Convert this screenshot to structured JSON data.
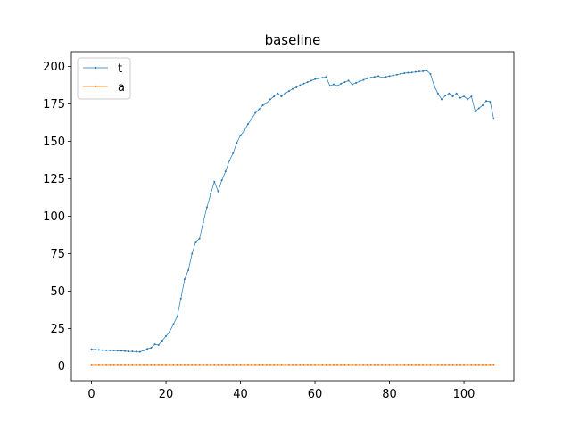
{
  "chart_data": {
    "type": "line",
    "title": "baseline",
    "xlabel": "",
    "ylabel": "",
    "xlim": [
      -5.4,
      113.4
    ],
    "ylim": [
      -9.8,
      209.8
    ],
    "xticks": [
      0,
      20,
      40,
      60,
      80,
      100
    ],
    "yticks": [
      0,
      25,
      50,
      75,
      100,
      125,
      150,
      175,
      200
    ],
    "grid": false,
    "legend_position": "top-left",
    "x": [
      0,
      1,
      2,
      3,
      4,
      5,
      6,
      7,
      8,
      9,
      10,
      11,
      12,
      13,
      14,
      15,
      16,
      17,
      18,
      19,
      20,
      21,
      22,
      23,
      24,
      25,
      26,
      27,
      28,
      29,
      30,
      31,
      32,
      33,
      34,
      35,
      36,
      37,
      38,
      39,
      40,
      41,
      42,
      43,
      44,
      45,
      46,
      47,
      48,
      49,
      50,
      51,
      52,
      53,
      54,
      55,
      56,
      57,
      58,
      59,
      60,
      61,
      62,
      63,
      64,
      65,
      66,
      67,
      68,
      69,
      70,
      71,
      72,
      73,
      74,
      75,
      76,
      77,
      78,
      79,
      80,
      81,
      82,
      83,
      84,
      85,
      86,
      87,
      88,
      89,
      90,
      91,
      92,
      93,
      94,
      95,
      96,
      97,
      98,
      99,
      100,
      101,
      102,
      103,
      104,
      105,
      106,
      107,
      108
    ],
    "series": [
      {
        "name": "t",
        "color": "#1f77b4",
        "values": [
          11.2,
          11.0,
          10.8,
          10.6,
          10.5,
          10.5,
          10.4,
          10.3,
          10.2,
          10.0,
          9.8,
          9.8,
          9.6,
          9.5,
          10.5,
          11.5,
          12.2,
          14.5,
          14.0,
          17.0,
          20.0,
          23.0,
          28.0,
          33.0,
          45.0,
          58.0,
          64.0,
          75.0,
          83.0,
          85.0,
          96.0,
          106.0,
          115.0,
          123.0,
          116.5,
          124.0,
          130.0,
          137.0,
          142.0,
          149.0,
          154.0,
          157.0,
          161.5,
          165.0,
          169.0,
          171.5,
          174.0,
          175.5,
          178.0,
          180.0,
          182.0,
          180.0,
          182.0,
          183.5,
          185.0,
          186.0,
          187.5,
          188.5,
          189.5,
          190.5,
          191.5,
          192.0,
          192.5,
          193.0,
          187.0,
          188.0,
          187.0,
          188.5,
          189.5,
          190.5,
          188.0,
          189.0,
          190.0,
          191.0,
          192.0,
          192.5,
          193.0,
          193.5,
          192.5,
          193.0,
          193.5,
          194.0,
          194.5,
          195.0,
          195.5,
          195.8,
          196.0,
          196.3,
          196.6,
          196.8,
          197.2,
          195.0,
          187.0,
          182.0,
          178.0,
          180.5,
          182.0,
          180.0,
          182.0,
          179.0,
          180.0,
          178.0,
          180.0,
          170.0,
          172.0,
          174.0,
          177.0,
          176.5,
          165.0
        ]
      },
      {
        "name": "a",
        "color": "#ff7f0e",
        "values": [
          1,
          1,
          1,
          1,
          1,
          1,
          1,
          1,
          1,
          1,
          1,
          1,
          1,
          1,
          1,
          1,
          1,
          1,
          1,
          1,
          1,
          1,
          1,
          1,
          1,
          1,
          1,
          1,
          1,
          1,
          1,
          1,
          1,
          1,
          1,
          1,
          1,
          1,
          1,
          1,
          1,
          1,
          1,
          1,
          1,
          1,
          1,
          1,
          1,
          1,
          1,
          1,
          1,
          1,
          1,
          1,
          1,
          1,
          1,
          1,
          1,
          1,
          1,
          1,
          1,
          1,
          1,
          1,
          1,
          1,
          1,
          1,
          1,
          1,
          1,
          1,
          1,
          1,
          1,
          1,
          1,
          1,
          1,
          1,
          1,
          1,
          1,
          1,
          1,
          1,
          1,
          1,
          1,
          1,
          1,
          1,
          1,
          1,
          1,
          1,
          1,
          1,
          1,
          1,
          1,
          1,
          1,
          1,
          1
        ]
      }
    ]
  }
}
